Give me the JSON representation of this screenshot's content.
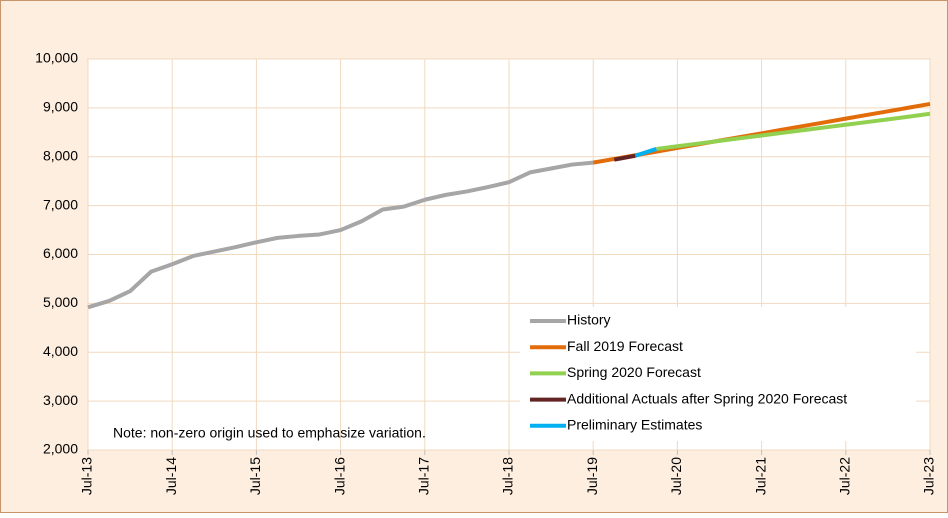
{
  "chart_data": {
    "type": "line",
    "categories": [
      "Jul-13",
      null,
      null,
      null,
      "Jul-14",
      null,
      null,
      null,
      "Jul-15",
      null,
      null,
      null,
      "Jul-16",
      null,
      null,
      null,
      "Jul-17",
      null,
      null,
      null,
      "Jul-18",
      null,
      null,
      null,
      "Jul-19",
      null,
      null,
      null,
      "Jul-20",
      null,
      null,
      null,
      "Jul-21",
      null,
      null,
      null,
      "Jul-22",
      null,
      null,
      null,
      "Jul-23"
    ],
    "series": [
      {
        "name": "History",
        "color": "#a6a6a6",
        "values": [
          4920,
          5050,
          5250,
          5650,
          5800,
          5970,
          6060,
          6150,
          6250,
          6340,
          6380,
          6410,
          6500,
          6680,
          6920,
          6980,
          7120,
          7220,
          7290,
          7380,
          7480,
          7680,
          7760,
          7840,
          7880,
          null,
          null,
          null,
          null,
          null,
          null,
          null,
          null,
          null,
          null,
          null,
          null,
          null,
          null,
          null,
          null
        ]
      },
      {
        "name": "Fall 2019 Forecast",
        "color": "#e36c0a",
        "values": [
          null,
          null,
          null,
          null,
          null,
          null,
          null,
          null,
          null,
          null,
          null,
          null,
          null,
          null,
          null,
          null,
          null,
          null,
          null,
          null,
          null,
          null,
          null,
          null,
          7880,
          7955,
          8030,
          8105,
          8180,
          8255,
          8330,
          8405,
          8480,
          8555,
          8630,
          8705,
          8780,
          8855,
          8930,
          9005,
          9080
        ]
      },
      {
        "name": "Spring 2020 Forecast",
        "color": "#92d050",
        "values": [
          null,
          null,
          null,
          null,
          null,
          null,
          null,
          null,
          null,
          null,
          null,
          null,
          null,
          null,
          null,
          null,
          null,
          null,
          null,
          null,
          null,
          null,
          null,
          null,
          null,
          null,
          null,
          8160,
          8215,
          8270,
          8325,
          8380,
          8435,
          8490,
          8545,
          8600,
          8655,
          8710,
          8765,
          8820,
          8880
        ]
      },
      {
        "name": "Additional Actuals after Spring 2020 Forecast",
        "color": "#632523",
        "values": [
          null,
          null,
          null,
          null,
          null,
          null,
          null,
          null,
          null,
          null,
          null,
          null,
          null,
          null,
          null,
          null,
          null,
          null,
          null,
          null,
          null,
          null,
          null,
          null,
          null,
          7940,
          8020,
          null,
          null,
          null,
          null,
          null,
          null,
          null,
          null,
          null,
          null,
          null,
          null,
          null,
          null
        ]
      },
      {
        "name": "Preliminary Estimates",
        "color": "#00b0f0",
        "values": [
          null,
          null,
          null,
          null,
          null,
          null,
          null,
          null,
          null,
          null,
          null,
          null,
          null,
          null,
          null,
          null,
          null,
          null,
          null,
          null,
          null,
          null,
          null,
          null,
          null,
          null,
          8020,
          8160,
          null,
          null,
          null,
          null,
          null,
          null,
          null,
          null,
          null,
          null,
          null,
          null,
          null
        ]
      }
    ],
    "ylim": [
      2000,
      10000
    ],
    "yticks": [
      {
        "value": 2000,
        "label": "2,000"
      },
      {
        "value": 3000,
        "label": "3,000"
      },
      {
        "value": 4000,
        "label": "4,000"
      },
      {
        "value": 5000,
        "label": "5,000"
      },
      {
        "value": 6000,
        "label": "6,000"
      },
      {
        "value": 7000,
        "label": "7,000"
      },
      {
        "value": 8000,
        "label": "8,000"
      },
      {
        "value": 9000,
        "label": "9,000"
      },
      {
        "value": 10000,
        "label": "10,000"
      }
    ],
    "grid": true,
    "annotation": "Note: non-zero origin used to emphasize variation.",
    "legend": "lower right"
  }
}
